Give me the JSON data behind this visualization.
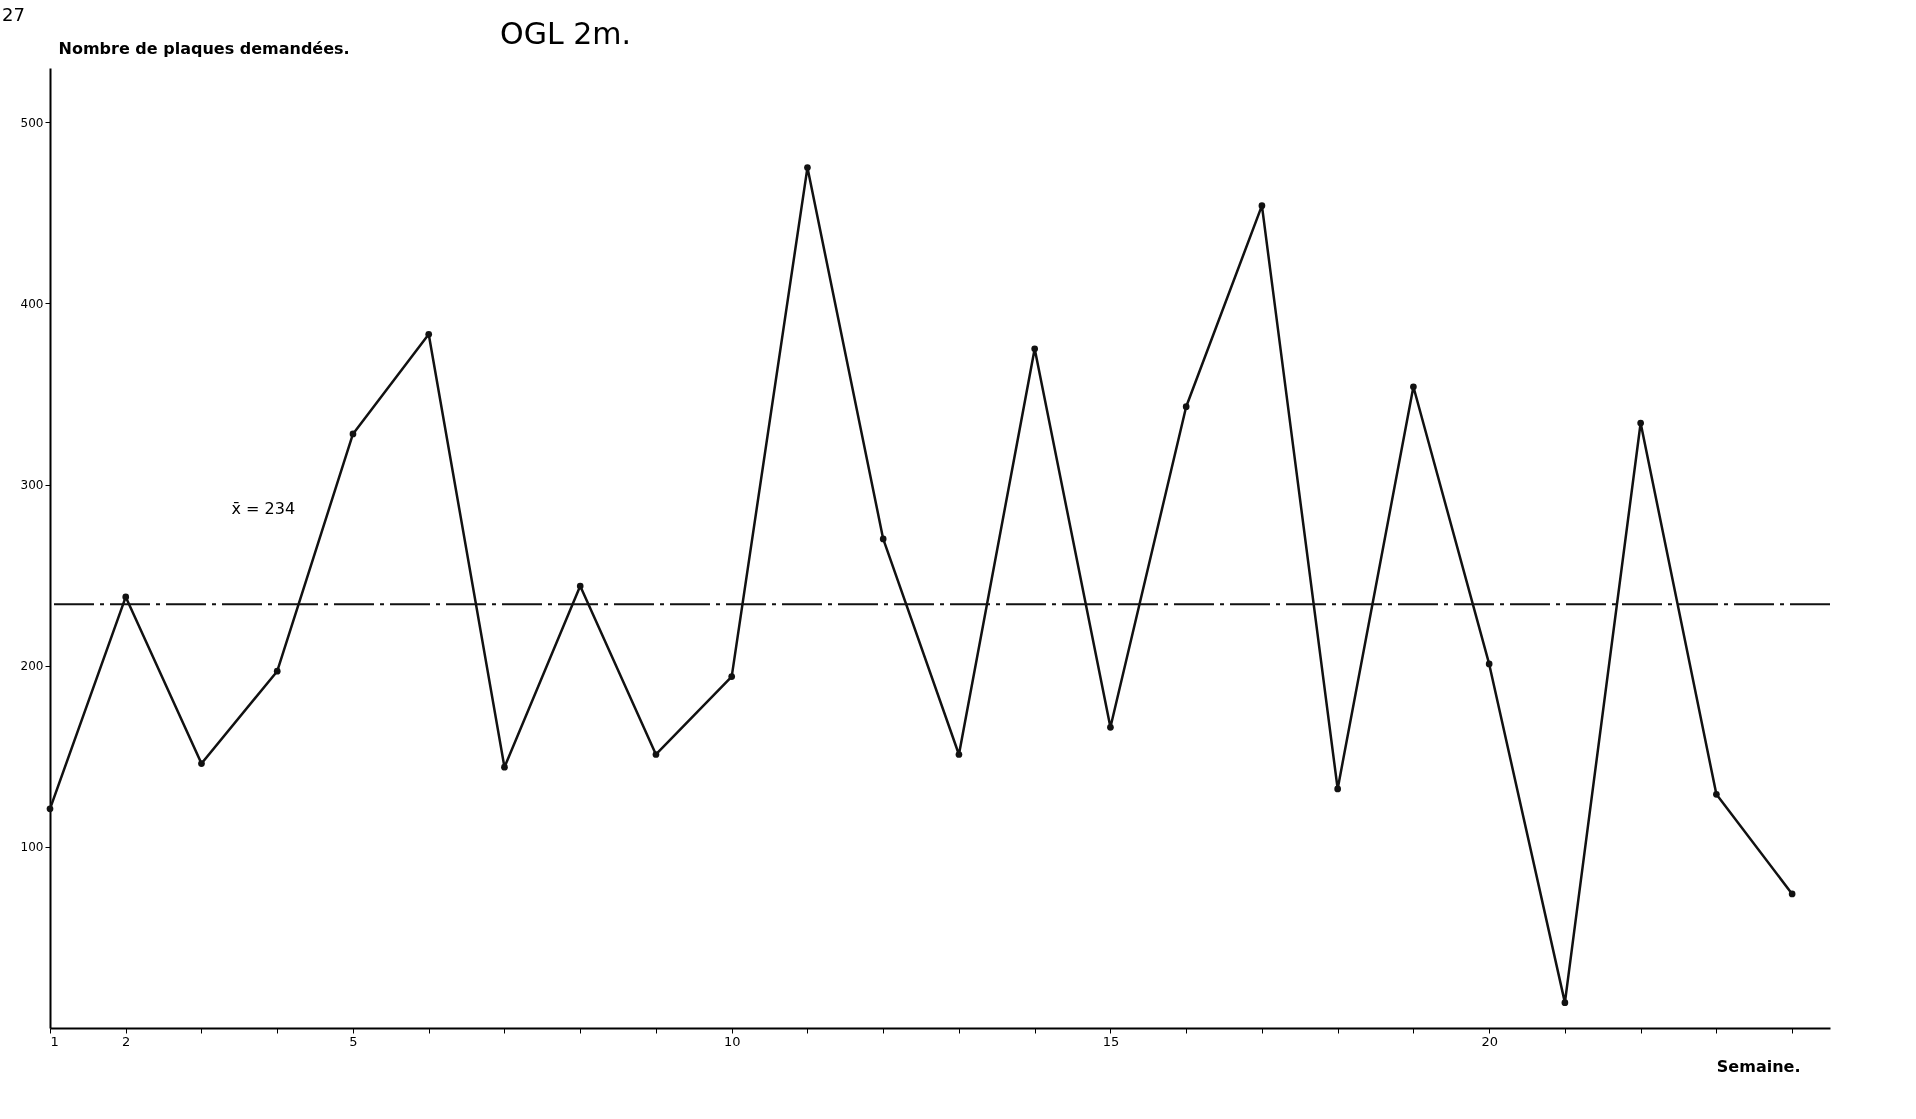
{
  "chart_data": {
    "type": "line",
    "title": "OGL 2m.",
    "xlabel": "Semaine.",
    "ylabel": "Nombre de plaques demandées.",
    "annotations": [
      "27"
    ],
    "x": [
      1,
      2,
      3,
      4,
      5,
      6,
      7,
      8,
      9,
      10,
      11,
      12,
      13,
      14,
      15,
      16,
      17,
      18,
      19,
      20,
      21,
      22,
      23,
      24
    ],
    "values": [
      121,
      238,
      146,
      197,
      328,
      383,
      144,
      244,
      151,
      194,
      475,
      270,
      151,
      375,
      166,
      343,
      454,
      132,
      354,
      201,
      14,
      334,
      129,
      74
    ],
    "color": "#111111",
    "xlim": [
      1,
      24.5
    ],
    "xticks": [
      1,
      2,
      {
        "value": 3,
        "label": null
      },
      {
        "value": 4,
        "label": null
      },
      5,
      {
        "value": 6,
        "label": null
      },
      {
        "value": 7,
        "label": null
      },
      {
        "value": 8,
        "label": null
      },
      {
        "value": 9,
        "label": null
      },
      10,
      {
        "value": 11,
        "label": null
      },
      {
        "value": 12,
        "label": null
      },
      {
        "value": 13,
        "label": null
      },
      {
        "value": 14,
        "label": null
      },
      15,
      {
        "value": 16,
        "label": null
      },
      {
        "value": 17,
        "label": null
      },
      {
        "value": 18,
        "label": null
      },
      {
        "value": 19,
        "label": null
      },
      20,
      {
        "value": 21,
        "label": null
      },
      {
        "value": 22,
        "label": null
      },
      {
        "value": 23,
        "label": null
      },
      {
        "value": 24,
        "label": null
      }
    ],
    "ylim": [
      0,
      530
    ],
    "yticks": [
      100,
      200,
      300,
      400,
      500
    ],
    "ref_lines": [
      {
        "axis": "y",
        "value": 234,
        "label": "x̄ = 234",
        "line_style": "dashdot"
      }
    ],
    "grid": false,
    "marker": "circle",
    "line_style": "solid"
  }
}
